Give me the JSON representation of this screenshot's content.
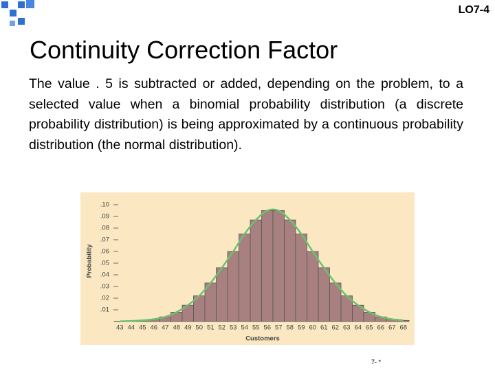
{
  "header": {
    "code": "LO7-4"
  },
  "title": "Continuity Correction Factor",
  "body": "The value . 5 is subtracted or added, depending on the problem, to a selected value when a binomial probability distribution (a discrete probability distribution) is being approximated by a continuous probability distribution (the normal distribution).",
  "chart_data": {
    "type": "bar",
    "categories": [
      "43",
      "44",
      "45",
      "46",
      "47",
      "48",
      "49",
      "50",
      "51",
      "52",
      "53",
      "54",
      "55",
      "56",
      "57",
      "58",
      "59",
      "60",
      "61",
      "62",
      "63",
      "64",
      "65",
      "66",
      "67",
      "68"
    ],
    "values": [
      0.0002,
      0.0005,
      0.001,
      0.002,
      0.004,
      0.008,
      0.014,
      0.022,
      0.033,
      0.046,
      0.06,
      0.075,
      0.087,
      0.095,
      0.095,
      0.087,
      0.075,
      0.06,
      0.046,
      0.033,
      0.022,
      0.014,
      0.008,
      0.004,
      0.002,
      0.001
    ],
    "color": "#a88080",
    "curve_color": "#6cc070",
    "ylabel": "Probability",
    "xlabel": "Customers",
    "ylim": [
      0,
      0.1
    ],
    "yticks": [
      {
        "value": 0.01,
        "label": ".01"
      },
      {
        "value": 0.02,
        "label": ".02"
      },
      {
        "value": 0.03,
        "label": ".03"
      },
      {
        "value": 0.04,
        "label": ".04"
      },
      {
        "value": 0.05,
        "label": ".05"
      },
      {
        "value": 0.06,
        "label": ".06"
      },
      {
        "value": 0.07,
        "label": ".07"
      },
      {
        "value": 0.08,
        "label": ".08"
      },
      {
        "value": 0.09,
        "label": ".09"
      },
      {
        "value": 0.1,
        "label": ".10"
      }
    ]
  },
  "footer": "7- *"
}
